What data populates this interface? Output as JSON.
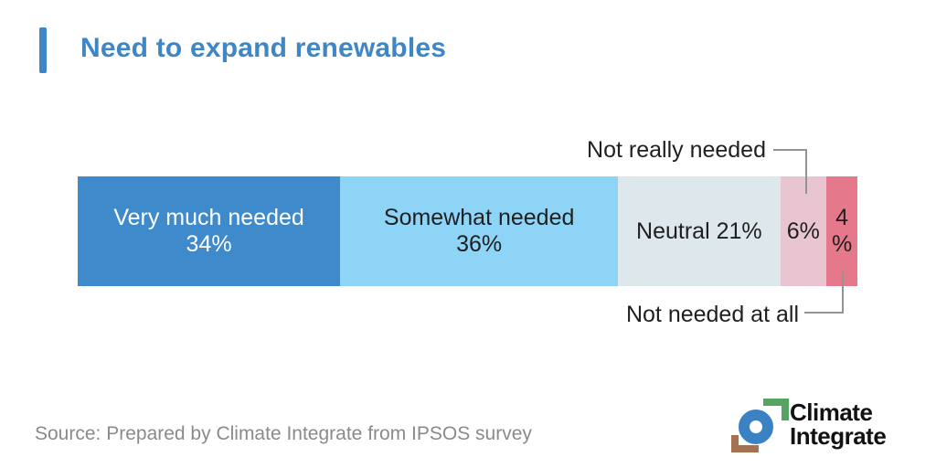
{
  "header": {
    "title": "Need to expand renewables",
    "accent_color": "#3e86c6"
  },
  "chart_data": {
    "type": "bar",
    "variant": "horizontal-stacked-percentage",
    "title": "Need to expand renewables",
    "unit": "%",
    "grid": false,
    "legend_position": "none",
    "categories": [
      "Very much needed",
      "Somewhat needed",
      "Neutral",
      "Not really needed",
      "Not needed at all"
    ],
    "values": [
      34,
      36,
      21,
      6,
      4
    ],
    "segments": [
      {
        "key": "very-much-needed",
        "label": "Very much needed",
        "value": 34,
        "color": "#3e8acb",
        "text_color": "#ffffff",
        "label_lines": [
          "Very much needed",
          "34%"
        ]
      },
      {
        "key": "somewhat-needed",
        "label": "Somewhat needed",
        "value": 36,
        "color": "#8ed4f7",
        "text_color": "#1f1f1f",
        "label_lines": [
          "Somewhat needed",
          "36%"
        ]
      },
      {
        "key": "neutral",
        "label": "Neutral",
        "value": 21,
        "color": "#dde7ec",
        "text_color": "#1f1f1f",
        "label_lines": [
          "Neutral 21%"
        ]
      },
      {
        "key": "not-really-needed",
        "label": "Not really needed",
        "value": 6,
        "color": "#e9c5d1",
        "text_color": "#1f1f1f",
        "label_lines": [
          "6%"
        ]
      },
      {
        "key": "not-needed-at-all",
        "label": "Not needed at all",
        "value": 4,
        "color": "#e5798b",
        "text_color": "#1f1f1f",
        "label_lines": [
          "4",
          "%"
        ]
      }
    ],
    "callouts": {
      "top": {
        "label": "Not really needed",
        "target_segment": "not-really-needed"
      },
      "bottom": {
        "label": "Not needed at all",
        "target_segment": "not-needed-at-all"
      }
    }
  },
  "footer": {
    "source": "Source: Prepared by Climate Integrate from IPSOS survey",
    "logo": {
      "text_lines": [
        "Climate",
        "Integrate"
      ],
      "colors": {
        "green": "#56a464",
        "blue": "#3b82c4",
        "brown": "#a6714e"
      }
    }
  }
}
